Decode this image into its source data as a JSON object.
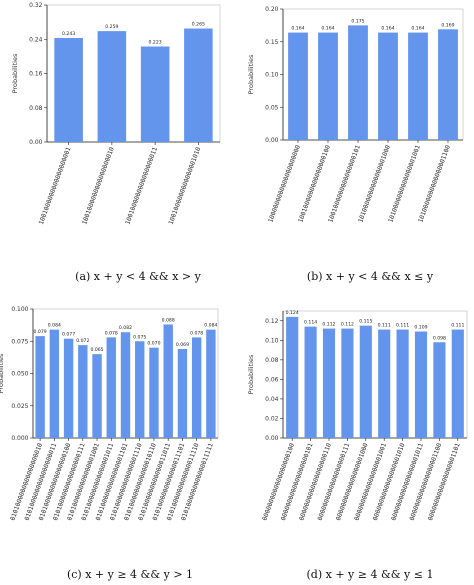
{
  "chart_data": [
    {
      "type": "bar",
      "caption": "(a)  x + y < 4 && x > y",
      "ylabel": "Probabilities",
      "ylim": [
        0,
        0.32
      ],
      "yticks": [
        "0.00",
        "0.08",
        "0.16",
        "0.24",
        "0.32"
      ],
      "categories": [
        "1001000000000000000001",
        "1001000000000000000010",
        "1001000000000000000011",
        "1001000000000000001010"
      ],
      "values": [
        0.243,
        0.259,
        0.223,
        0.265
      ],
      "labels": [
        "0.243",
        "0.259",
        "0.223",
        "0.265"
      ],
      "grid": false
    },
    {
      "type": "bar",
      "caption": "(b)  x + y < 4 && x ≤ y",
      "ylabel": "Probabilities",
      "ylim": [
        0,
        0.2
      ],
      "yticks": [
        "0.00",
        "0.05",
        "0.10",
        "0.15",
        "0.20"
      ],
      "categories": [
        "1000000000000000000000",
        "1001000000000000000100",
        "1001000000000000000101",
        "1010000000000000001000",
        "1010000000000000001001",
        "1010000000000000001100"
      ],
      "values": [
        0.164,
        0.164,
        0.175,
        0.164,
        0.164,
        0.169
      ],
      "labels": [
        "0.164",
        "0.164",
        "0.175",
        "0.164",
        "0.164",
        "0.169"
      ],
      "grid": false
    },
    {
      "type": "bar",
      "caption": "(c)  x + y ≥ 4 && y > 1",
      "ylabel": "Probabilities",
      "ylim": [
        0,
        0.1
      ],
      "yticks": [
        "0.000",
        "0.025",
        "0.050",
        "0.075",
        "0.100"
      ],
      "categories": [
        "0101000000000000000010",
        "0101000000000000000011",
        "0101000000000000000100",
        "0101000000000000000111",
        "0101000000000000001001",
        "0101000000000000001011",
        "0101000000000000001101",
        "0101000000000000001110",
        "0101000000000000010110",
        "0101000000000000011011",
        "0101000000000000011101",
        "0101000000000000011110",
        "0101000000000000011111"
      ],
      "values": [
        0.079,
        0.084,
        0.077,
        0.072,
        0.065,
        0.078,
        0.082,
        0.075,
        0.07,
        0.088,
        0.069,
        0.078,
        0.084
      ],
      "labels": [
        "0.079",
        "0.084",
        "0.077",
        "0.072",
        "0.065",
        "0.078",
        "0.082",
        "0.075",
        "0.070",
        "0.088",
        "0.069",
        "0.078",
        "0.084"
      ],
      "grid": false
    },
    {
      "type": "bar",
      "caption": "(d)  x + y ≥ 4 && y ≤ 1",
      "ylabel": "Probabilities",
      "ylim": [
        0,
        0.13
      ],
      "yticks": [
        "0.00",
        "0.02",
        "0.04",
        "0.06",
        "0.08",
        "0.10",
        "0.12"
      ],
      "categories": [
        "0000000000000000000100",
        "0000000000000000000101",
        "0000000000000000000110",
        "0000000000000000000111",
        "0000000000000000001000",
        "0000000000000000001001",
        "0000000000000000001010",
        "0000000000000000001011",
        "0000000000000000001100",
        "0000000000000000001101"
      ],
      "values": [
        0.124,
        0.114,
        0.112,
        0.112,
        0.115,
        0.111,
        0.111,
        0.109,
        0.098,
        0.111
      ],
      "labels": [
        "0.124",
        "0.114",
        "0.112",
        "0.112",
        "0.115",
        "0.111",
        "0.111",
        "0.109",
        "0.098",
        "0.111"
      ],
      "grid": false
    }
  ],
  "colors": {
    "bar": "#6495ED",
    "axis": "#222222",
    "spine": "#cccccc"
  }
}
